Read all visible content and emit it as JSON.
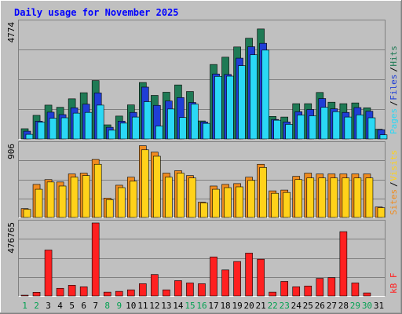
{
  "chart_data": [
    {
      "type": "bar",
      "panel": "hits-files-pages",
      "title": "Daily usage for November 2025",
      "ymax_label": "4774",
      "legend": [
        "Pages",
        "Files",
        "Hits"
      ],
      "categories": [
        "1",
        "2",
        "3",
        "4",
        "5",
        "6",
        "7",
        "8",
        "9",
        "10",
        "11",
        "12",
        "13",
        "14",
        "15",
        "16",
        "17",
        "18",
        "19",
        "20",
        "21",
        "22",
        "23",
        "24",
        "25",
        "26",
        "27",
        "28",
        "29",
        "30",
        "31"
      ],
      "weekend_days": [
        "1",
        "2",
        "8",
        "9",
        "15",
        "16",
        "22",
        "23",
        "29",
        "30"
      ],
      "ylim": [
        0,
        4774
      ],
      "series": [
        {
          "name": "Hits",
          "values": [
            420,
            970,
            1390,
            1300,
            1650,
            1900,
            2400,
            580,
            940,
            1400,
            2320,
            1790,
            1920,
            2220,
            1950,
            740,
            3060,
            3360,
            3780,
            4140,
            4520,
            925,
            900,
            1450,
            1450,
            1910,
            1510,
            1450,
            1480,
            1280,
            400
          ]
        },
        {
          "name": "Files",
          "values": [
            320,
            730,
            1100,
            1000,
            1280,
            1430,
            1890,
            480,
            730,
            1090,
            2130,
            1380,
            1560,
            1700,
            1500,
            700,
            2670,
            2650,
            3320,
            3790,
            3930,
            800,
            700,
            1120,
            1210,
            1660,
            1240,
            1090,
            1290,
            1140,
            380
          ]
        },
        {
          "name": "Pages",
          "values": [
            190,
            690,
            850,
            870,
            1060,
            1090,
            1390,
            360,
            650,
            900,
            1530,
            530,
            1230,
            880,
            1430,
            640,
            2570,
            2580,
            3010,
            3460,
            3650,
            770,
            600,
            980,
            950,
            1300,
            1120,
            900,
            990,
            870,
            170
          ]
        }
      ],
      "colors": {
        "Hits": "#1f7a55",
        "Files": "#1f3ed6",
        "Pages": "#2ad8f5"
      }
    },
    {
      "type": "bar",
      "panel": "visits-sites",
      "ymax_label": "906",
      "legend": [
        "Sites",
        "Visits"
      ],
      "categories": [
        "1",
        "2",
        "3",
        "4",
        "5",
        "6",
        "7",
        "8",
        "9",
        "10",
        "11",
        "12",
        "13",
        "14",
        "15",
        "16",
        "17",
        "18",
        "19",
        "20",
        "21",
        "22",
        "23",
        "24",
        "25",
        "26",
        "27",
        "28",
        "29",
        "30",
        "31"
      ],
      "ylim": [
        0,
        906
      ],
      "series": [
        {
          "name": "Visits",
          "values": [
            110,
            410,
            470,
            440,
            540,
            550,
            720,
            240,
            400,
            500,
            890,
            810,
            550,
            580,
            520,
            190,
            390,
            410,
            420,
            500,
            660,
            330,
            340,
            510,
            550,
            540,
            540,
            540,
            540,
            540,
            130
          ]
        },
        {
          "name": "Sites",
          "values": [
            100,
            350,
            440,
            390,
            500,
            520,
            660,
            220,
            370,
            450,
            840,
            760,
            500,
            550,
            490,
            180,
            350,
            370,
            380,
            460,
            620,
            300,
            310,
            470,
            490,
            490,
            490,
            490,
            490,
            490,
            120
          ]
        }
      ],
      "colors": {
        "Visits": "#f08c1f",
        "Sites": "#ffd21a"
      }
    },
    {
      "type": "bar",
      "panel": "kbytes",
      "ymax_label": "476765",
      "legend": [
        "kB F"
      ],
      "categories": [
        "1",
        "2",
        "3",
        "4",
        "5",
        "6",
        "7",
        "8",
        "9",
        "10",
        "11",
        "12",
        "13",
        "14",
        "15",
        "16",
        "17",
        "18",
        "19",
        "20",
        "21",
        "22",
        "23",
        "24",
        "25",
        "26",
        "27",
        "28",
        "29",
        "30",
        "31"
      ],
      "ylim": [
        0,
        476765
      ],
      "series": [
        {
          "name": "kB F",
          "values": [
            5000,
            24000,
            300000,
            50000,
            70000,
            60000,
            476765,
            25000,
            30000,
            40000,
            80000,
            140000,
            40000,
            100000,
            85000,
            80000,
            255000,
            170000,
            225000,
            280000,
            240000,
            25000,
            95000,
            60000,
            65000,
            115000,
            120000,
            420000,
            85000,
            20000,
            0
          ]
        }
      ],
      "colors": {
        "kB F": "#ff2020"
      }
    }
  ],
  "colors": {
    "background": "#c0c0c0",
    "title": "#0000ff",
    "weekday": "#000000",
    "weekend": "#00a050"
  }
}
